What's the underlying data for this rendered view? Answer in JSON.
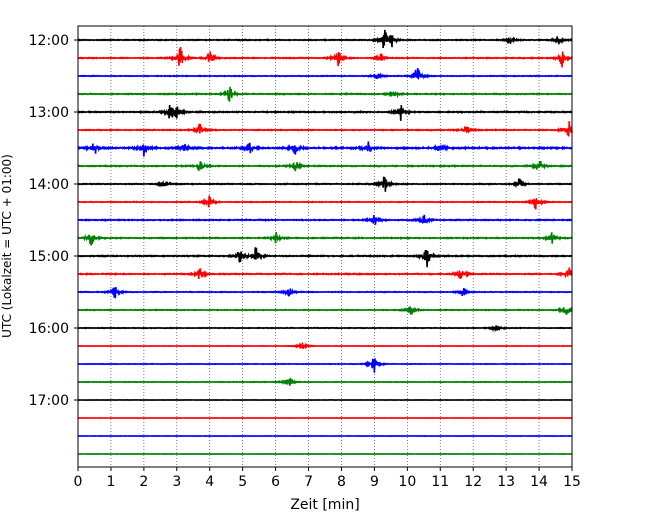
{
  "chart_data": {
    "type": "line",
    "title": "",
    "xlabel": "Zeit  [min]",
    "ylabel": "UTC (Lokalzeit = UTC + 01:00)",
    "xlim": [
      0,
      15
    ],
    "x_ticks": [
      "0",
      "1",
      "2",
      "3",
      "4",
      "5",
      "6",
      "7",
      "8",
      "9",
      "10",
      "11",
      "12",
      "13",
      "14",
      "15"
    ],
    "y_ticks": [
      "12:00",
      "13:00",
      "14:00",
      "15:00",
      "16:00",
      "17:00"
    ],
    "grid": "vertical dotted",
    "colors": [
      "#000000",
      "#ff0000",
      "#0000ff",
      "#008000"
    ],
    "series": [
      {
        "start": "12:00",
        "events": [
          [
            9.3,
            1.0
          ],
          [
            9.5,
            0.7
          ],
          [
            13.1,
            0.4
          ],
          [
            14.6,
            0.5
          ]
        ],
        "noise": 0.18
      },
      {
        "start": "12:15",
        "events": [
          [
            3.1,
            1.0
          ],
          [
            4.0,
            0.6
          ],
          [
            7.9,
            0.7
          ],
          [
            9.2,
            0.4
          ],
          [
            14.7,
            0.8
          ]
        ],
        "noise": 0.18
      },
      {
        "start": "12:30",
        "events": [
          [
            10.3,
            0.9
          ],
          [
            9.1,
            0.3
          ]
        ],
        "noise": 0.15
      },
      {
        "start": "12:45",
        "events": [
          [
            4.6,
            0.7
          ],
          [
            9.6,
            0.5
          ]
        ],
        "noise": 0.2
      },
      {
        "start": "13:00",
        "events": [
          [
            2.8,
            0.8
          ],
          [
            3.0,
            0.6
          ],
          [
            9.8,
            0.9
          ]
        ],
        "noise": 0.22
      },
      {
        "start": "13:15",
        "events": [
          [
            3.7,
            0.6
          ],
          [
            11.8,
            0.5
          ],
          [
            14.9,
            1.0
          ]
        ],
        "noise": 0.18
      },
      {
        "start": "13:30",
        "events": [
          [
            0.5,
            0.6
          ],
          [
            2.0,
            0.8
          ],
          [
            3.2,
            0.5
          ],
          [
            5.2,
            0.6
          ],
          [
            6.6,
            0.6
          ],
          [
            8.8,
            0.6
          ],
          [
            11.0,
            0.5
          ]
        ],
        "noise": 0.3
      },
      {
        "start": "13:45",
        "events": [
          [
            3.7,
            0.6
          ],
          [
            6.6,
            0.5
          ],
          [
            14.0,
            0.7
          ]
        ],
        "noise": 0.2
      },
      {
        "start": "14:00",
        "events": [
          [
            2.6,
            0.4
          ],
          [
            9.3,
            0.9
          ],
          [
            13.4,
            0.5
          ]
        ],
        "noise": 0.18
      },
      {
        "start": "14:15",
        "events": [
          [
            4.0,
            0.6
          ],
          [
            13.9,
            0.7
          ]
        ],
        "noise": 0.15
      },
      {
        "start": "14:30",
        "events": [
          [
            9.0,
            0.5
          ],
          [
            10.5,
            0.5
          ]
        ],
        "noise": 0.2
      },
      {
        "start": "14:45",
        "events": [
          [
            0.4,
            0.7
          ],
          [
            6.0,
            0.6
          ],
          [
            14.4,
            0.7
          ]
        ],
        "noise": 0.2
      },
      {
        "start": "15:00",
        "events": [
          [
            4.9,
            0.6
          ],
          [
            5.4,
            0.8
          ],
          [
            10.6,
            1.0
          ]
        ],
        "noise": 0.22
      },
      {
        "start": "15:15",
        "events": [
          [
            3.7,
            0.6
          ],
          [
            11.6,
            0.7
          ],
          [
            14.9,
            0.6
          ]
        ],
        "noise": 0.2
      },
      {
        "start": "15:30",
        "events": [
          [
            1.1,
            0.7
          ],
          [
            6.4,
            0.5
          ],
          [
            11.7,
            0.4
          ]
        ],
        "noise": 0.15
      },
      {
        "start": "15:45",
        "events": [
          [
            10.1,
            0.5
          ],
          [
            14.8,
            0.6
          ]
        ],
        "noise": 0.15
      },
      {
        "start": "16:00",
        "events": [
          [
            12.7,
            0.4
          ]
        ],
        "noise": 0.13
      },
      {
        "start": "16:15",
        "events": [
          [
            6.8,
            0.4
          ]
        ],
        "noise": 0.08
      },
      {
        "start": "16:30",
        "events": [
          [
            9.0,
            0.9
          ]
        ],
        "noise": 0.1
      },
      {
        "start": "16:45",
        "events": [
          [
            6.4,
            0.6
          ]
        ],
        "noise": 0.12
      },
      {
        "start": "17:00",
        "events": [],
        "noise": 0.07
      },
      {
        "start": "17:15",
        "events": [],
        "noise": 0.06
      },
      {
        "start": "17:30",
        "events": [],
        "noise": 0.06
      },
      {
        "start": "17:45",
        "events": [],
        "noise": 0.06
      }
    ]
  }
}
